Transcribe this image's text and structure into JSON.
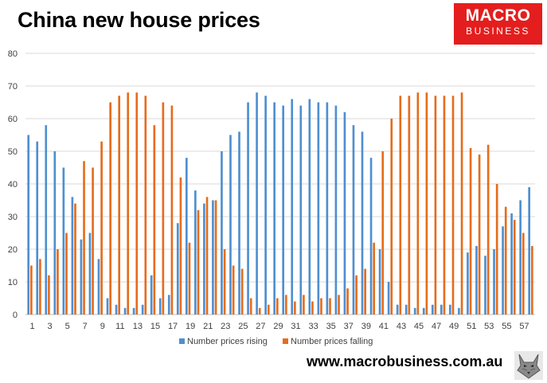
{
  "header": {
    "title": "China new house prices",
    "logo_line1": "MACRO",
    "logo_line2": "BUSINESS"
  },
  "footer": {
    "website": "www.macrobusiness.com.au"
  },
  "colors": {
    "rising": "#4e8fd0",
    "falling": "#e66c1c",
    "grid": "#d9d9d9",
    "logo_bg": "#e41e1e"
  },
  "icons": {
    "brand_mascot": "wolf-icon"
  },
  "chart_data": {
    "type": "bar",
    "title": "China new house prices",
    "categories": [
      1,
      2,
      3,
      4,
      5,
      6,
      7,
      8,
      9,
      10,
      11,
      12,
      13,
      14,
      15,
      16,
      17,
      18,
      19,
      20,
      21,
      22,
      23,
      24,
      25,
      26,
      27,
      28,
      29,
      30,
      31,
      32,
      33,
      34,
      35,
      36,
      37,
      38,
      39,
      40,
      41,
      42,
      43,
      44,
      45,
      46,
      47,
      48,
      49,
      50,
      51,
      52,
      53,
      54,
      55,
      56,
      57,
      58
    ],
    "x_tick_labels": [
      1,
      3,
      5,
      7,
      9,
      11,
      13,
      15,
      17,
      19,
      21,
      23,
      25,
      27,
      29,
      31,
      33,
      35,
      37,
      39,
      41,
      43,
      45,
      47,
      49,
      51,
      53,
      55,
      57
    ],
    "ylim": [
      0,
      80
    ],
    "y_ticks": [
      0,
      10,
      20,
      30,
      40,
      50,
      60,
      70,
      80
    ],
    "grid": true,
    "legend_position": "bottom",
    "series": [
      {
        "name": "Number prices rising",
        "values": [
          55,
          53,
          58,
          50,
          45,
          36,
          23,
          25,
          17,
          5,
          3,
          2,
          2,
          3,
          12,
          5,
          6,
          28,
          48,
          38,
          34,
          35,
          50,
          55,
          56,
          65,
          68,
          67,
          65,
          64,
          66,
          64,
          66,
          65,
          65,
          64,
          62,
          58,
          56,
          48,
          20,
          10,
          3,
          3,
          2,
          2,
          3,
          3,
          3,
          2,
          19,
          21,
          18,
          20,
          27,
          31,
          35,
          39
        ]
      },
      {
        "name": "Number prices falling",
        "values": [
          15,
          17,
          12,
          20,
          25,
          34,
          47,
          45,
          53,
          65,
          67,
          68,
          68,
          67,
          58,
          65,
          64,
          42,
          22,
          32,
          36,
          35,
          20,
          15,
          14,
          5,
          2,
          3,
          5,
          6,
          4,
          6,
          4,
          5,
          5,
          6,
          8,
          12,
          14,
          22,
          50,
          60,
          67,
          67,
          68,
          68,
          67,
          67,
          67,
          68,
          51,
          49,
          52,
          40,
          33,
          29,
          25,
          21
        ]
      }
    ]
  }
}
